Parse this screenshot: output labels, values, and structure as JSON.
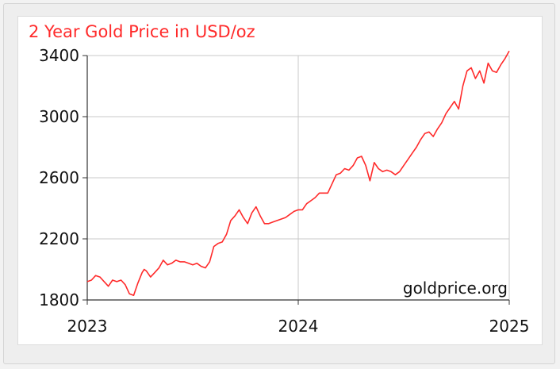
{
  "chart_data": {
    "type": "line",
    "title": "2 Year Gold Price in USD/oz",
    "watermark": "goldprice.org",
    "xlabel": "",
    "ylabel": "",
    "x_ticks": [
      {
        "label": "2023",
        "value": 2023
      },
      {
        "label": "2024",
        "value": 2024
      },
      {
        "label": "2025",
        "value": 2025
      }
    ],
    "y_ticks": [
      {
        "label": "1800",
        "value": 1800
      },
      {
        "label": "2200",
        "value": 2200
      },
      {
        "label": "2600",
        "value": 2600
      },
      {
        "label": "3000",
        "value": 3000
      },
      {
        "label": "3400",
        "value": 3400
      }
    ],
    "xlim": [
      2023,
      2025
    ],
    "ylim": [
      1800,
      3400
    ],
    "grid": true,
    "line_color": "#ff2a2a",
    "series": [
      {
        "x": [
          2023.0,
          2023.02,
          2023.04,
          2023.06,
          2023.08,
          2023.1,
          2023.12,
          2023.14,
          2023.16,
          2023.18,
          2023.2,
          2023.22,
          2023.24,
          2023.26,
          2023.27,
          2023.28,
          2023.3,
          2023.32,
          2023.34,
          2023.36,
          2023.38,
          2023.4,
          2023.42,
          2023.44,
          2023.46,
          2023.48,
          2023.5,
          2023.52,
          2023.54,
          2023.56,
          2023.58,
          2023.6,
          2023.62,
          2023.64,
          2023.66,
          2023.68,
          2023.7,
          2023.72,
          2023.74,
          2023.76,
          2023.78,
          2023.8,
          2023.82,
          2023.84,
          2023.86,
          2023.88,
          2023.9,
          2023.92,
          2023.94,
          2023.96,
          2023.98,
          2024.0,
          2024.02,
          2024.04,
          2024.06,
          2024.08,
          2024.1,
          2024.12,
          2024.14,
          2024.16,
          2024.18,
          2024.2,
          2024.22,
          2024.24,
          2024.26,
          2024.28,
          2024.3,
          2024.32,
          2024.34,
          2024.36,
          2024.38,
          2024.4,
          2024.42,
          2024.44,
          2024.46,
          2024.48,
          2024.5,
          2024.52,
          2024.54,
          2024.56,
          2024.58,
          2024.6,
          2024.62,
          2024.64,
          2024.66,
          2024.68,
          2024.7,
          2024.72,
          2024.74,
          2024.76,
          2024.78,
          2024.8,
          2024.82,
          2024.84,
          2024.86,
          2024.88,
          2024.9,
          2024.92,
          2024.94,
          2024.96,
          2024.98,
          2025.0
        ],
        "y": [
          1920,
          1930,
          1960,
          1950,
          1920,
          1890,
          1930,
          1920,
          1930,
          1900,
          1840,
          1830,
          1910,
          1980,
          2000,
          1990,
          1950,
          1980,
          2010,
          2060,
          2030,
          2040,
          2060,
          2050,
          2050,
          2040,
          2030,
          2040,
          2020,
          2010,
          2050,
          2150,
          2170,
          2180,
          2230,
          2320,
          2350,
          2390,
          2340,
          2300,
          2370,
          2410,
          2350,
          2300,
          2300,
          2310,
          2320,
          2330,
          2340,
          2360,
          2380,
          2390,
          2390,
          2430,
          2450,
          2470,
          2500,
          2500,
          2500,
          2560,
          2620,
          2630,
          2660,
          2650,
          2680,
          2730,
          2740,
          2680,
          2580,
          2700,
          2660,
          2640,
          2650,
          2640,
          2620,
          2640,
          2680,
          2720,
          2760,
          2800,
          2850,
          2890,
          2900,
          2870,
          2920,
          2960,
          3020,
          3060,
          3100,
          3050,
          3200,
          3300,
          3320,
          3250,
          3300,
          3220,
          3350,
          3300,
          3290,
          3340,
          3380,
          3430
        ]
      }
    ]
  }
}
